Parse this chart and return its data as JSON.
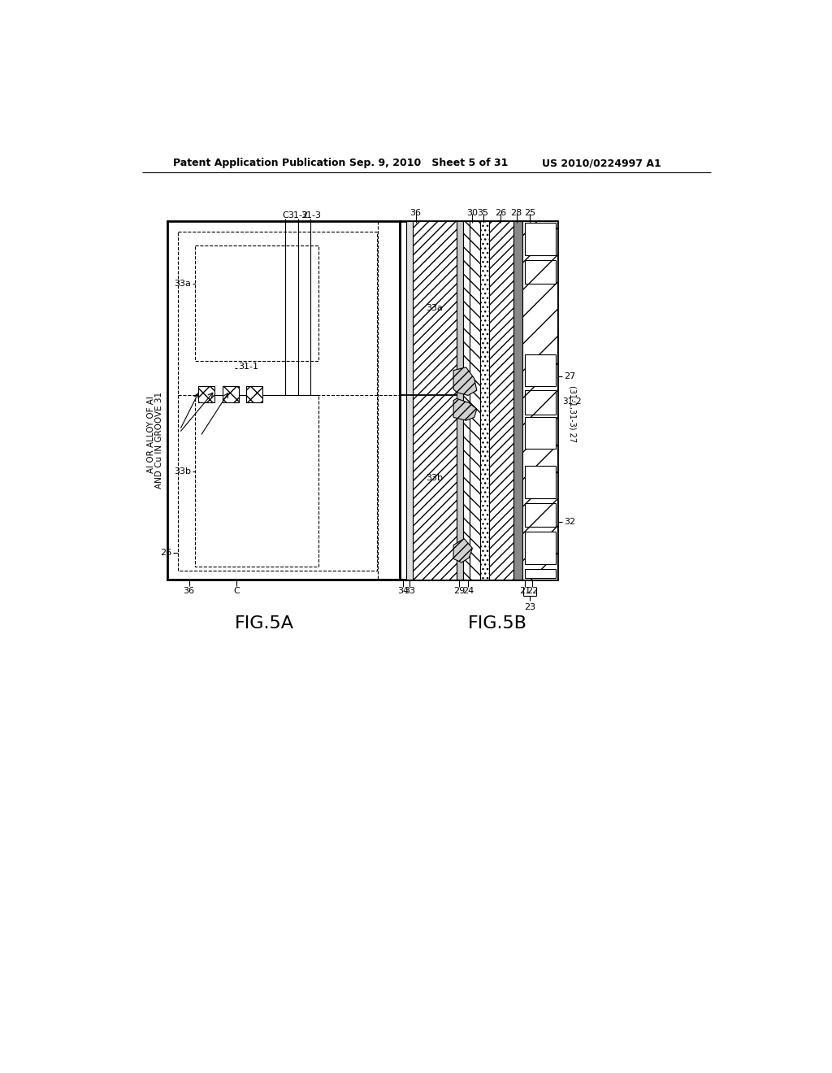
{
  "bg_color": "#ffffff",
  "line_color": "#000000",
  "header_left": "Patent Application Publication",
  "header_mid": "Sep. 9, 2010   Sheet 5 of 31",
  "header_right": "US 2010/0224997 A1",
  "fig5a_label": "FIG.5A",
  "fig5b_label": "FIG.5B"
}
